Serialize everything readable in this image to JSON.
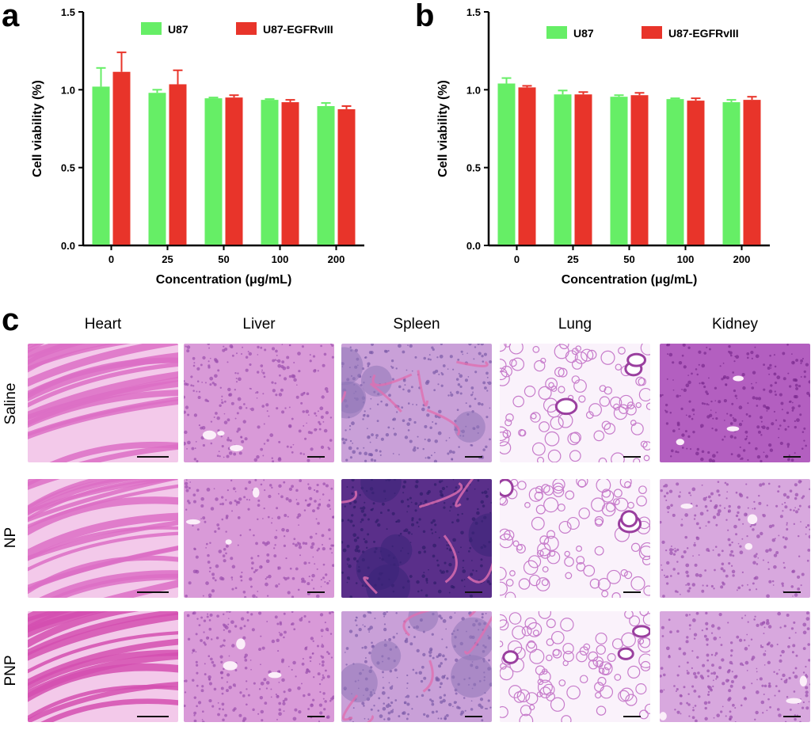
{
  "chart_data": [
    {
      "type": "bar",
      "panel": "a",
      "categories": [
        "0",
        "25",
        "50",
        "100",
        "200"
      ],
      "series": [
        {
          "name": "U87",
          "color": "#66ee66",
          "values": [
            1.02,
            0.98,
            0.945,
            0.935,
            0.895
          ],
          "errors": [
            0.12,
            0.02,
            0.005,
            0.005,
            0.02
          ]
        },
        {
          "name": "U87-EGFRvIII",
          "color": "#e8342a",
          "values": [
            1.115,
            1.035,
            0.95,
            0.92,
            0.875
          ],
          "errors": [
            0.125,
            0.09,
            0.015,
            0.015,
            0.02
          ]
        }
      ],
      "xlabel": "Concentration (μg/mL)",
      "ylabel": "Cell viability (%)",
      "ylim": [
        0,
        1.5
      ],
      "yticks": [
        "0.0",
        "0.5",
        "1.0",
        "1.5"
      ],
      "legend_position": "top"
    },
    {
      "type": "bar",
      "panel": "b",
      "categories": [
        "0",
        "25",
        "50",
        "100",
        "200"
      ],
      "series": [
        {
          "name": "U87",
          "color": "#66ee66",
          "values": [
            1.04,
            0.97,
            0.955,
            0.94,
            0.92
          ],
          "errors": [
            0.035,
            0.025,
            0.01,
            0.005,
            0.015
          ]
        },
        {
          "name": "U87-EGFRvIII",
          "color": "#e8342a",
          "values": [
            1.015,
            0.97,
            0.965,
            0.93,
            0.935
          ],
          "errors": [
            0.01,
            0.015,
            0.015,
            0.015,
            0.02
          ]
        }
      ],
      "xlabel": "Concentration (μg/mL)",
      "ylabel": "Cell viability (%)",
      "ylim": [
        0,
        1.5
      ],
      "yticks": [
        "0.0",
        "0.5",
        "1.0",
        "1.5"
      ],
      "legend_position": "top"
    }
  ],
  "panel_labels": {
    "a": "a",
    "b": "b",
    "c": "c"
  },
  "histology": {
    "columns": [
      "Heart",
      "Liver",
      "Spleen",
      "Lung",
      "Kidney"
    ],
    "rows": [
      "Saline",
      "NP",
      "PNP"
    ],
    "stain_colors": {
      "pink": "#e9a6d8",
      "purple": "#8a3f9a",
      "dark_purple": "#4b2a7a"
    }
  }
}
